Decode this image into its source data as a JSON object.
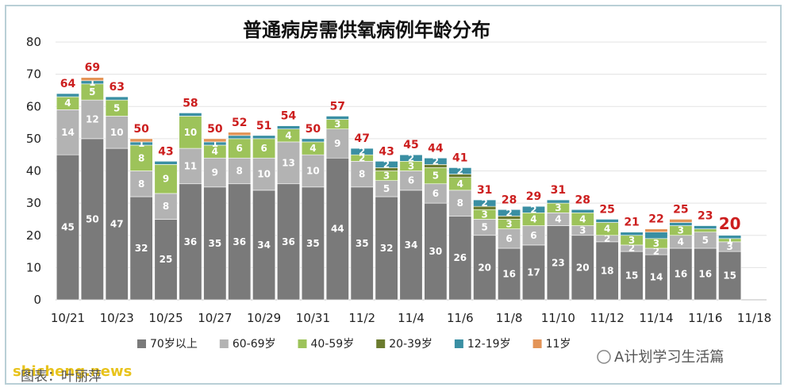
{
  "chart_data": {
    "type": "bar",
    "stacked": true,
    "title": "普通病房需供氧病例年龄分布",
    "categories": [
      "10/21",
      "10/22",
      "10/23",
      "10/24",
      "10/25",
      "10/26",
      "10/27",
      "10/28",
      "10/29",
      "10/30",
      "10/31",
      "11/1",
      "11/2",
      "11/3",
      "11/4",
      "11/5",
      "11/6",
      "11/7",
      "11/8",
      "11/9",
      "11/10",
      "11/11",
      "11/12",
      "11/13",
      "11/14",
      "11/15",
      "11/16",
      "11/17",
      "11/18"
    ],
    "x_tick_labels": [
      "10/21",
      "10/23",
      "10/25",
      "10/27",
      "10/29",
      "10/31",
      "11/2",
      "11/4",
      "11/6",
      "11/8",
      "11/10",
      "11/12",
      "11/14",
      "11/16",
      "11/18"
    ],
    "ylim": [
      0,
      80
    ],
    "yticks": [
      0,
      10,
      20,
      30,
      40,
      50,
      60,
      70,
      80
    ],
    "grid": true,
    "legend_position": "bottom",
    "series": [
      {
        "name": "70岁以上",
        "color": "#7a7a7a",
        "label_color": "#ffffff",
        "values": [
          45,
          50,
          47,
          32,
          25,
          36,
          35,
          36,
          34,
          36,
          35,
          44,
          35,
          32,
          34,
          30,
          26,
          20,
          16,
          17,
          23,
          20,
          18,
          15,
          14,
          16,
          16,
          15,
          null
        ]
      },
      {
        "name": "60-69岁",
        "color": "#b3b3b3",
        "label_color": "#ffffff",
        "values": [
          14,
          12,
          10,
          8,
          8,
          11,
          9,
          8,
          10,
          13,
          10,
          9,
          8,
          5,
          6,
          6,
          8,
          5,
          6,
          6,
          4,
          3,
          2,
          2,
          2,
          4,
          5,
          3,
          null
        ]
      },
      {
        "name": "40-59岁",
        "color": "#9dc35a",
        "label_color": "#ffffff",
        "values": [
          4,
          5,
          5,
          8,
          9,
          10,
          4,
          6,
          6,
          4,
          4,
          3,
          2,
          3,
          3,
          5,
          4,
          3,
          3,
          4,
          3,
          4,
          4,
          3,
          3,
          3,
          1,
          1,
          null
        ]
      },
      {
        "name": "20-39岁",
        "color": "#6b7b2e",
        "label_color": "#ffffff",
        "values": [
          0,
          0,
          0,
          0,
          0,
          0,
          0,
          0,
          0,
          0,
          0,
          0,
          0,
          1,
          0,
          1,
          1,
          1,
          1,
          0,
          0,
          0,
          0,
          0,
          0,
          0,
          0,
          0,
          null
        ]
      },
      {
        "name": "12-19岁",
        "color": "#3a8fa3",
        "label_color": "#ffffff",
        "values": [
          1,
          1,
          1,
          1,
          1,
          1,
          1,
          1,
          1,
          1,
          1,
          1,
          2,
          2,
          2,
          2,
          2,
          2,
          2,
          2,
          1,
          1,
          1,
          1,
          2,
          1,
          1,
          1,
          null
        ]
      },
      {
        "name": "11岁",
        "color": "#e39457",
        "label_color": "#ffffff",
        "values": [
          0,
          1,
          0,
          1,
          0,
          0,
          1,
          1,
          0,
          0,
          0,
          0,
          0,
          0,
          0,
          0,
          0,
          0,
          0,
          0,
          0,
          0,
          0,
          0,
          1,
          1,
          0,
          0,
          null
        ]
      }
    ],
    "segment_labels_shown": [
      [
        "45",
        "14",
        "4",
        "",
        "",
        ""
      ],
      [
        "50",
        "12",
        "5",
        "",
        "1",
        ""
      ],
      [
        "47",
        "10",
        "5",
        "",
        "",
        ""
      ],
      [
        "32",
        "8",
        "8",
        "",
        "1",
        ""
      ],
      [
        "25",
        "8",
        "9",
        "",
        "",
        ""
      ],
      [
        "36",
        "11",
        "10",
        "",
        "",
        ""
      ],
      [
        "35",
        "9",
        "4",
        "",
        "1",
        ""
      ],
      [
        "36",
        "8",
        "6",
        "",
        "",
        ""
      ],
      [
        "34",
        "10",
        "6",
        "",
        "",
        ""
      ],
      [
        "36",
        "13",
        "4",
        "",
        "",
        ""
      ],
      [
        "35",
        "10",
        "4",
        "",
        "",
        ""
      ],
      [
        "44",
        "9",
        "3",
        "",
        "",
        ""
      ],
      [
        "35",
        "8",
        "2",
        "",
        "2",
        ""
      ],
      [
        "32",
        "5",
        "3",
        "",
        "2",
        ""
      ],
      [
        "34",
        "6",
        "3",
        "",
        "2",
        ""
      ],
      [
        "30",
        "6",
        "5",
        "",
        "2",
        ""
      ],
      [
        "26",
        "8",
        "4",
        "",
        "2",
        ""
      ],
      [
        "20",
        "5",
        "3",
        "",
        "2",
        ""
      ],
      [
        "16",
        "6",
        "3",
        "",
        "2",
        ""
      ],
      [
        "17",
        "6",
        "4",
        "",
        "2",
        ""
      ],
      [
        "23",
        "4",
        "3",
        "",
        "",
        ""
      ],
      [
        "20",
        "3",
        "4",
        "",
        "",
        ""
      ],
      [
        "18",
        "2",
        "4",
        "",
        "",
        ""
      ],
      [
        "15",
        "2",
        "3",
        "",
        "",
        ""
      ],
      [
        "14",
        "2",
        "3",
        "",
        "",
        ""
      ],
      [
        "16",
        "4",
        "3",
        "",
        "",
        ""
      ],
      [
        "16",
        "5",
        "",
        "",
        "",
        ""
      ],
      [
        "15",
        "3",
        "1",
        "",
        "",
        ""
      ],
      [
        "",
        "",
        "",
        "",
        "",
        ""
      ]
    ],
    "totals": [
      64,
      69,
      63,
      50,
      43,
      58,
      50,
      52,
      51,
      54,
      50,
      57,
      47,
      43,
      45,
      44,
      41,
      31,
      28,
      29,
      31,
      28,
      25,
      21,
      22,
      25,
      23,
      20,
      null
    ]
  },
  "watermark": {
    "left_site": "shicheng.news",
    "left_caption": "图表：叶丽萍",
    "right_account": "A计划学习生活篇"
  }
}
